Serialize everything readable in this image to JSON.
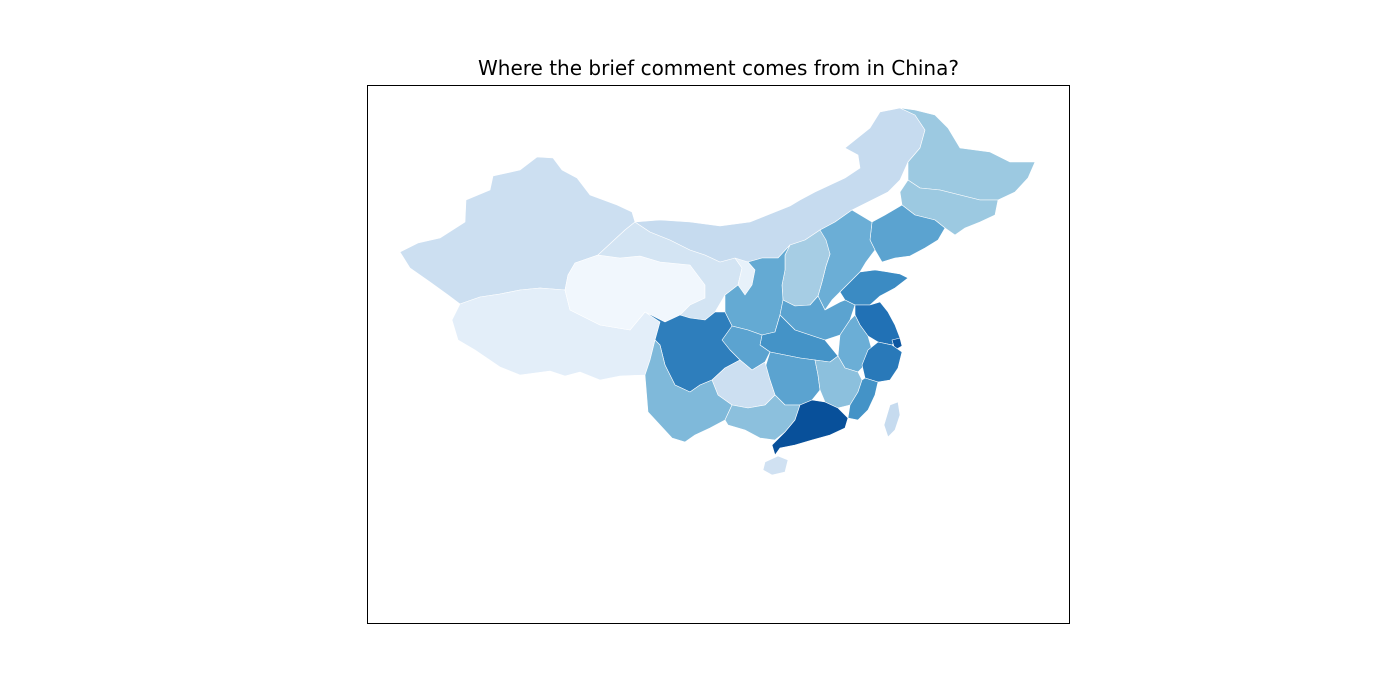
{
  "title": "Where the brief comment comes from in China?",
  "colormap": "Blues",
  "regions": [
    {
      "name": "Xinjiang",
      "level": 0.22
    },
    {
      "name": "Tibet",
      "level": 0.1
    },
    {
      "name": "Qinghai",
      "level": 0.03
    },
    {
      "name": "Gansu",
      "level": 0.18
    },
    {
      "name": "Inner Mongolia",
      "level": 0.25
    },
    {
      "name": "Heilongjiang",
      "level": 0.38
    },
    {
      "name": "Jilin",
      "level": 0.38
    },
    {
      "name": "Liaoning",
      "level": 0.55
    },
    {
      "name": "Beijing",
      "level": 0.95
    },
    {
      "name": "Tianjin",
      "level": 0.5
    },
    {
      "name": "Hebei",
      "level": 0.5
    },
    {
      "name": "Shanxi",
      "level": 0.35
    },
    {
      "name": "Ningxia",
      "level": 0.08
    },
    {
      "name": "Shaanxi",
      "level": 0.52
    },
    {
      "name": "Shandong",
      "level": 0.65
    },
    {
      "name": "Henan",
      "level": 0.55
    },
    {
      "name": "Jiangsu",
      "level": 0.75
    },
    {
      "name": "Anhui",
      "level": 0.5
    },
    {
      "name": "Shanghai",
      "level": 0.85
    },
    {
      "name": "Zhejiang",
      "level": 0.72
    },
    {
      "name": "Hubei",
      "level": 0.62
    },
    {
      "name": "Chongqing",
      "level": 0.55
    },
    {
      "name": "Sichuan",
      "level": 0.7
    },
    {
      "name": "Hunan",
      "level": 0.55
    },
    {
      "name": "Jiangxi",
      "level": 0.42
    },
    {
      "name": "Fujian",
      "level": 0.62
    },
    {
      "name": "Guizhou",
      "level": 0.22
    },
    {
      "name": "Yunnan",
      "level": 0.45
    },
    {
      "name": "Guangxi",
      "level": 0.42
    },
    {
      "name": "Guangdong",
      "level": 0.88
    },
    {
      "name": "Hainan",
      "level": 0.2
    },
    {
      "name": "Taiwan",
      "level": 0.25
    }
  ]
}
